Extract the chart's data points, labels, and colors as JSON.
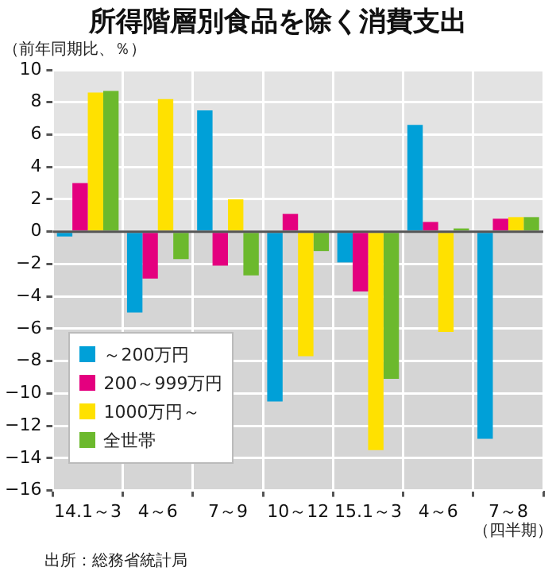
{
  "chart_data": {
    "type": "bar",
    "title": "所得階層別食品を除く消費支出",
    "ylabel": "（前年同期比、％）",
    "categories": [
      "14.1～3",
      "4～6",
      "7～9",
      "10～12",
      "15.1～3",
      "4～6",
      "7～8"
    ],
    "series": [
      {
        "name": "～200万円",
        "color": "#00a0d8",
        "values": [
          -0.3,
          -5.0,
          7.5,
          -10.5,
          -1.9,
          6.6,
          -12.8
        ]
      },
      {
        "name": "200～999万円",
        "color": "#e4007f",
        "values": [
          3.0,
          -2.9,
          -2.1,
          1.1,
          -3.7,
          0.6,
          0.8
        ]
      },
      {
        "name": "1000万円～",
        "color": "#ffe100",
        "values": [
          8.6,
          8.2,
          2.0,
          -7.7,
          -13.5,
          -6.2,
          0.9
        ]
      },
      {
        "name": "全世帯",
        "color": "#6cb92d",
        "values": [
          8.7,
          -1.7,
          -2.7,
          -1.2,
          -9.1,
          0.2,
          0.9
        ]
      }
    ],
    "ylim": [
      -16,
      10
    ],
    "yticks": [
      -16,
      -14,
      -12,
      -10,
      -8,
      -6,
      -4,
      -2,
      0,
      2,
      4,
      6,
      8,
      10
    ],
    "grid": true,
    "legend": "bottom left",
    "bands": [
      {
        "axis": "y",
        "from": 0,
        "to": 10,
        "color": "#e3e3e3"
      },
      {
        "axis": "y",
        "from": -16,
        "to": 0,
        "color": "#d5d5d5"
      }
    ],
    "annotations": [
      "（四半期）",
      "出所：総務省統計局"
    ]
  }
}
